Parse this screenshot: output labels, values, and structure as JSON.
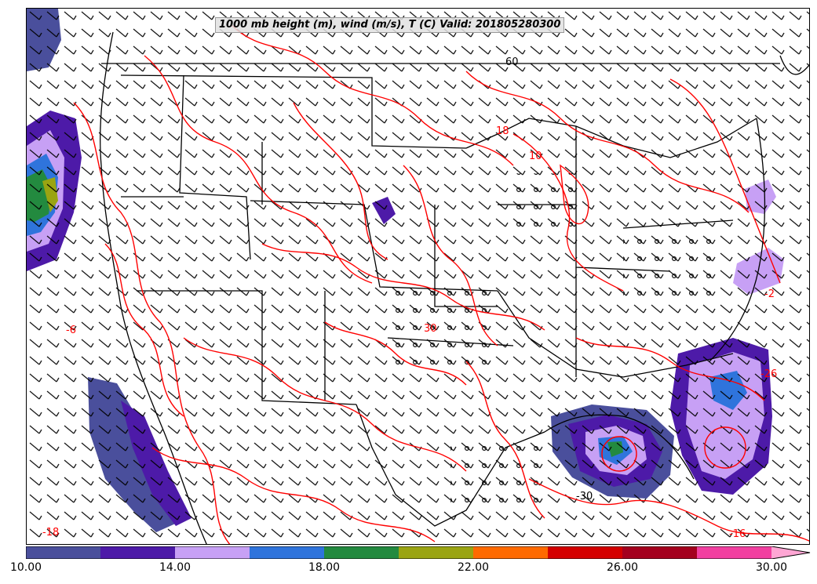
{
  "title": "1000 mb height (m), wind (m/s), T (C) Valid: 201805280300",
  "colorbar": {
    "min": 10,
    "max": 31,
    "labels": [
      "10.00",
      "14.00",
      "18.00",
      "22.00",
      "26.00",
      "30.00"
    ],
    "colors": [
      "#4a4f9c",
      "#4d1aa8",
      "#c7a0f5",
      "#2f74dc",
      "#238a3f",
      "#9aa412",
      "#ff6a00",
      "#d40000",
      "#a4001e",
      "#f23fa0",
      "#ffa6d4"
    ]
  },
  "contour_labels": [
    {
      "text": "-6"
    },
    {
      "text": "-18"
    },
    {
      "text": "30"
    },
    {
      "text": "18"
    },
    {
      "text": "10"
    },
    {
      "text": "60"
    },
    {
      "text": "-26"
    },
    {
      "text": "-30"
    },
    {
      "text": "-2"
    },
    {
      "text": "-16"
    }
  ],
  "colors": {
    "temperature_contour": "#ff0000",
    "boundaries": "#000000",
    "barbs": "#000000"
  }
}
